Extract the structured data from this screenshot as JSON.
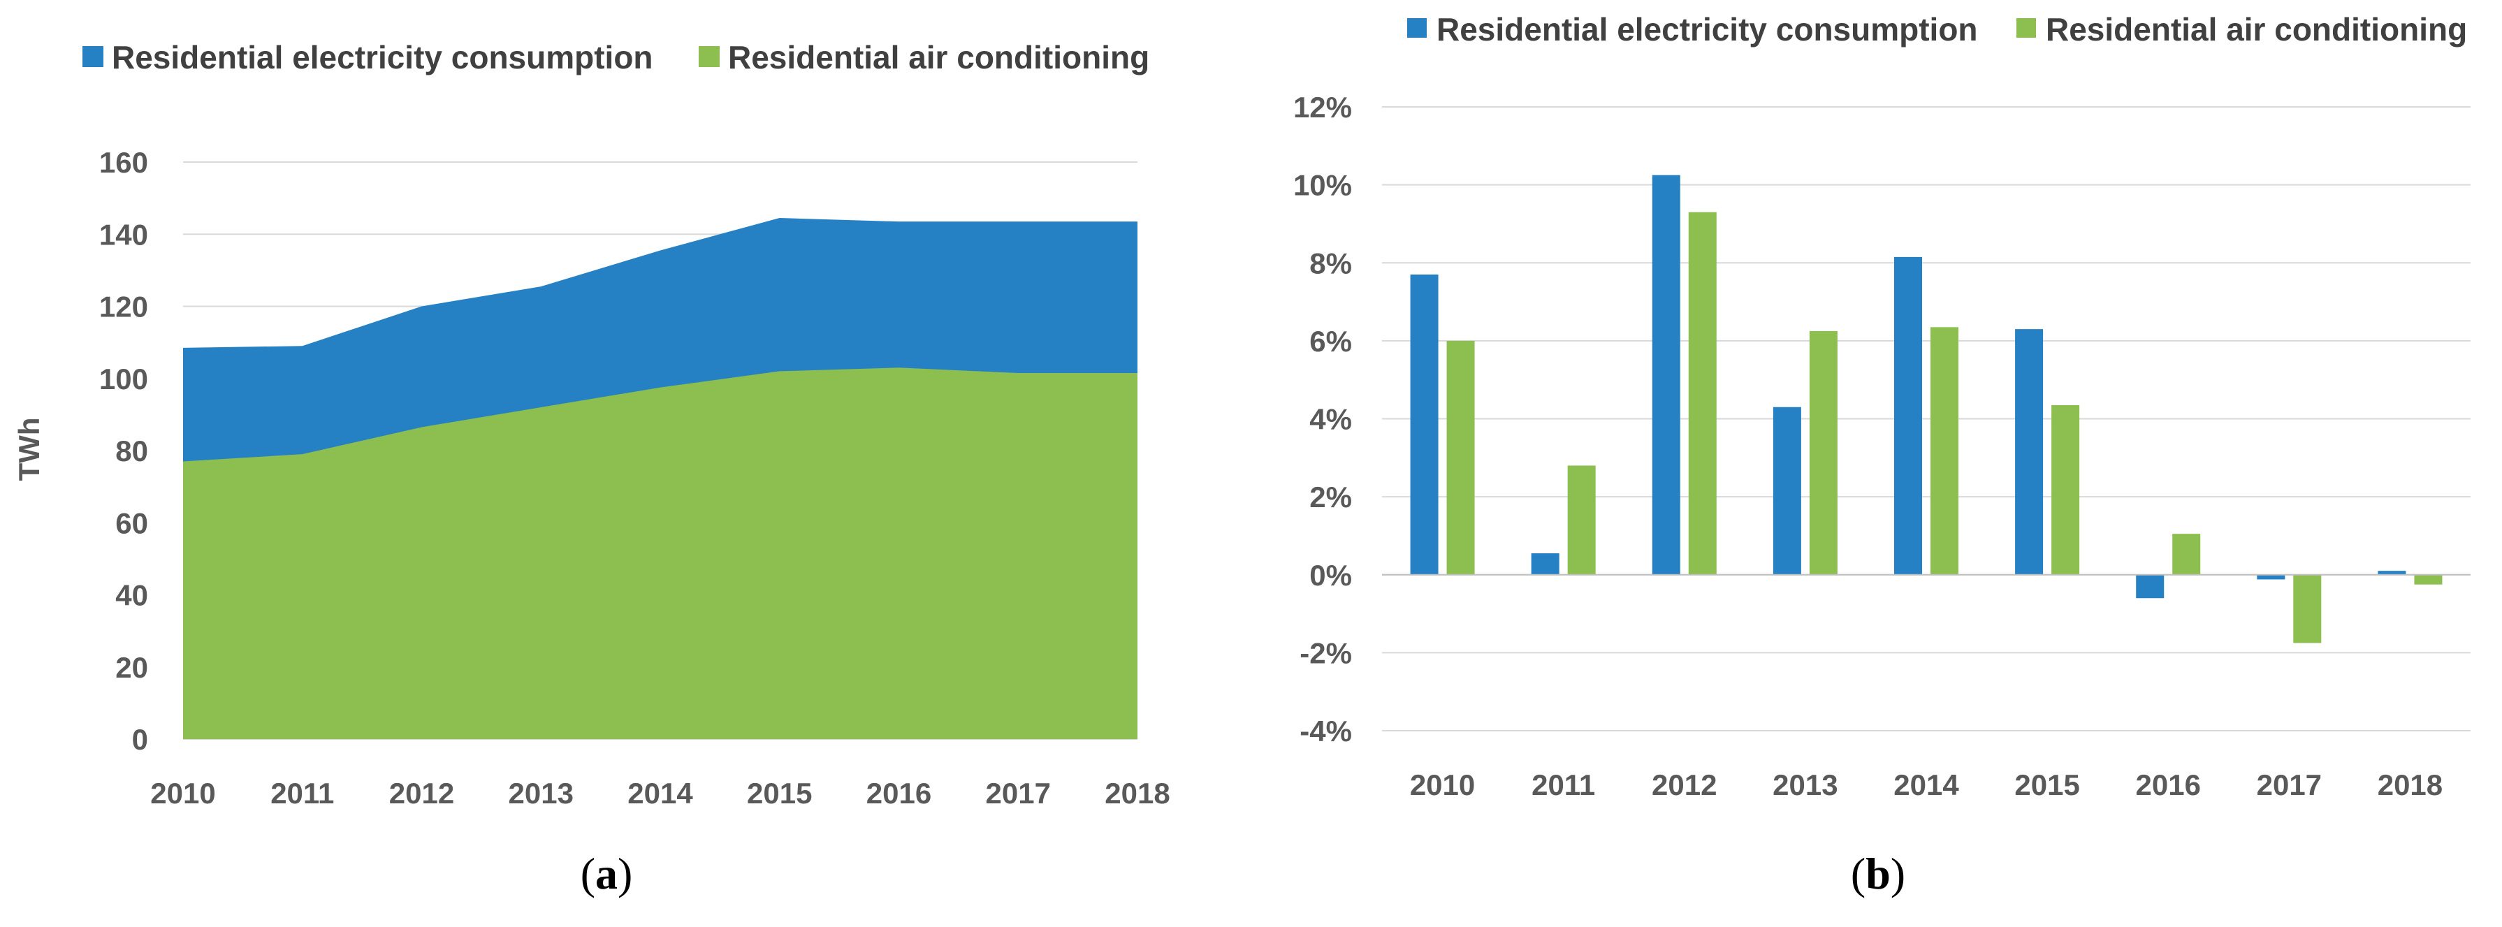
{
  "chart_data": [
    {
      "type": "area",
      "stacked": false,
      "categories": [
        "2010",
        "2011",
        "2012",
        "2013",
        "2014",
        "2015",
        "2016",
        "2017",
        "2018"
      ],
      "series": [
        {
          "name": "Residential electricity consumption",
          "color": "#2581c4",
          "values": [
            108.5,
            109,
            120,
            125.5,
            135.5,
            144.5,
            143.5,
            143.5,
            143.5
          ]
        },
        {
          "name": "Residential air conditioning",
          "color": "#8cbe50",
          "values": [
            77,
            79,
            86.5,
            92,
            97.5,
            102,
            103,
            101.5,
            101.5
          ]
        }
      ],
      "ylabel": "TWh",
      "xlabel": "",
      "ylim": [
        0,
        160
      ],
      "yticks": [
        "0",
        "20",
        "40",
        "60",
        "80",
        "100",
        "120",
        "140",
        "160"
      ],
      "grid": true,
      "legend_position": "top-left",
      "caption_letter": "a"
    },
    {
      "type": "bar",
      "categories": [
        "2010",
        "2011",
        "2012",
        "2013",
        "2014",
        "2015",
        "2016",
        "2017",
        "2018"
      ],
      "series": [
        {
          "name": "Residential electricity consumption",
          "color": "#2581c4",
          "values": [
            7.7,
            0.55,
            10.25,
            4.3,
            8.15,
            6.3,
            -0.6,
            -0.12,
            0.1
          ]
        },
        {
          "name": "Residential air conditioning",
          "color": "#8cbe50",
          "values": [
            6.0,
            2.8,
            9.3,
            6.25,
            6.35,
            4.35,
            1.05,
            -1.75,
            -0.25
          ]
        }
      ],
      "xlabel": "",
      "ylabel": "",
      "ylim": [
        -4,
        12
      ],
      "yticks": [
        "-4%",
        "-2%",
        "0%",
        "2%",
        "4%",
        "6%",
        "8%",
        "10%",
        "12%"
      ],
      "grid": true,
      "legend_position": "top",
      "caption_letter": "b"
    }
  ]
}
